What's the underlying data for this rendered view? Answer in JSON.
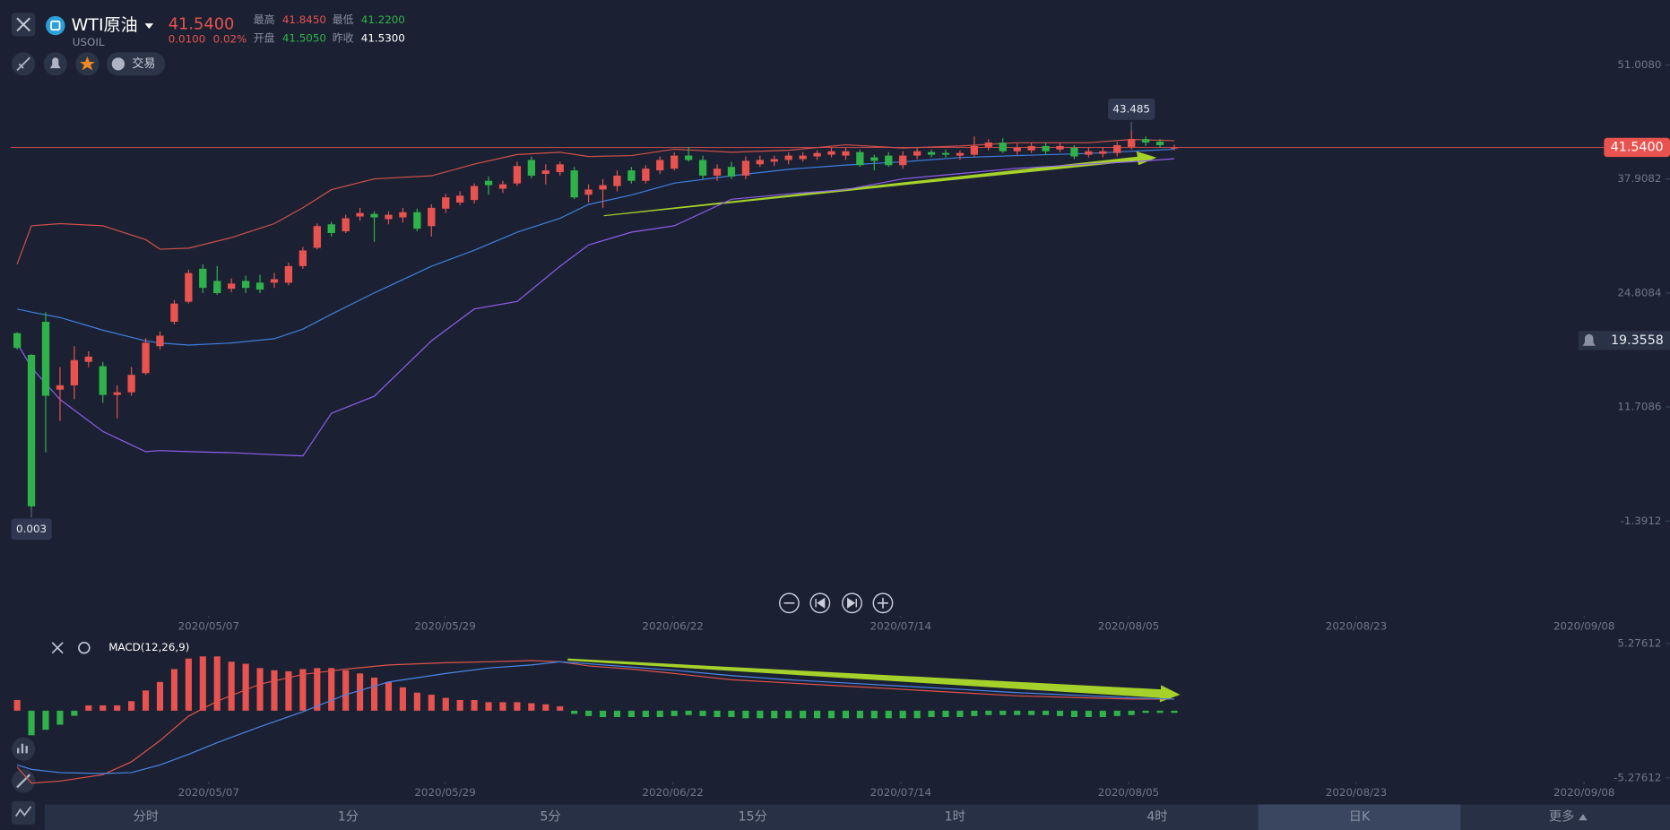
{
  "header": {
    "name": "WTI原油",
    "symbol": "USOIL",
    "price": "41.5400",
    "change": "0.0100",
    "change_pct": "0.02%",
    "stats": [
      {
        "label": "最高",
        "value": "41.8450",
        "color": "#e8524f"
      },
      {
        "label": "开盘",
        "value": "41.5050",
        "color": "#2fb24a"
      },
      {
        "label": "最低",
        "value": "41.2200",
        "color": "#2fb24a"
      },
      {
        "label": "昨收",
        "value": "41.5300",
        "color": "#ffffff"
      }
    ]
  },
  "toolbar": {
    "trade": "交易"
  },
  "price_chart": {
    "type": "candlestick",
    "up_color": "#e8524f",
    "down_color": "#2fb24a",
    "xlim": [
      -1.2,
      115.7
    ],
    "ylim": [
      -11.92,
      58.48
    ],
    "yticks": [
      {
        "value": 51.008,
        "label": "51.0080"
      },
      37.9082,
      24.8084,
      11.7086,
      -1.3912
    ],
    "xticks": [
      {
        "value": 13.41,
        "label": "2020/05/07"
      },
      {
        "value": 29.96,
        "label": "2020/05/29"
      },
      {
        "value": 45.9,
        "label": "2020/06/22"
      },
      {
        "value": 61.85,
        "label": "2020/07/14"
      },
      {
        "value": 77.8,
        "label": "2020/08/05"
      },
      {
        "value": 93.74,
        "label": "2020/08/23"
      },
      {
        "value": 109.69,
        "label": "2020/09/08"
      }
    ],
    "current": {
      "value": 41.54,
      "label": "41.5400",
      "color": "#e8524f"
    },
    "alert": 19.3558,
    "max_index": 78,
    "min_index": 1,
    "candles": [
      [
        20.2,
        20.3,
        18.3,
        18.5
      ],
      [
        17.7,
        17.8,
        0.003,
        0.3
      ],
      [
        21.5,
        22.6,
        6.5,
        13.0
      ],
      [
        13.7,
        16.3,
        10.1,
        14.2
      ],
      [
        14.2,
        18.7,
        12.6,
        17.1
      ],
      [
        16.9,
        18.1,
        16.3,
        17.5
      ],
      [
        16.4,
        16.9,
        12.2,
        13.1
      ],
      [
        13.1,
        14.2,
        10.4,
        13.4
      ],
      [
        13.4,
        16.3,
        13.0,
        15.4
      ],
      [
        15.6,
        19.6,
        15.4,
        19.1
      ],
      [
        18.7,
        20.4,
        18.3,
        19.9
      ],
      [
        21.5,
        24.0,
        21.2,
        23.6
      ],
      [
        23.8,
        27.5,
        23.6,
        27.1
      ],
      [
        27.6,
        28.1,
        24.8,
        25.4
      ],
      [
        26.2,
        27.9,
        24.6,
        24.8
      ],
      [
        25.3,
        26.5,
        24.9,
        25.9
      ],
      [
        26.2,
        26.8,
        24.8,
        25.4
      ],
      [
        26.0,
        26.9,
        24.8,
        25.2
      ],
      [
        26.0,
        27.1,
        25.4,
        26.4
      ],
      [
        26.0,
        28.3,
        25.7,
        27.9
      ],
      [
        27.9,
        30.1,
        27.6,
        29.7
      ],
      [
        30.0,
        32.8,
        29.8,
        32.5
      ],
      [
        32.7,
        33.0,
        31.3,
        31.7
      ],
      [
        31.9,
        33.8,
        31.7,
        33.4
      ],
      [
        33.6,
        34.6,
        33.1,
        34.0
      ],
      [
        33.9,
        34.2,
        30.7,
        33.5
      ],
      [
        33.3,
        34.2,
        32.7,
        33.8
      ],
      [
        33.5,
        34.6,
        32.9,
        34.1
      ],
      [
        34.1,
        34.5,
        31.9,
        32.2
      ],
      [
        32.5,
        35.0,
        31.3,
        34.6
      ],
      [
        34.5,
        36.2,
        34.0,
        35.8
      ],
      [
        35.2,
        36.5,
        34.9,
        36.0
      ],
      [
        35.5,
        37.4,
        35.1,
        37.1
      ],
      [
        37.7,
        38.2,
        36.1,
        37.2
      ],
      [
        36.8,
        37.7,
        36.3,
        37.3
      ],
      [
        37.4,
        39.9,
        37.1,
        39.4
      ],
      [
        40.1,
        40.5,
        38.0,
        38.3
      ],
      [
        38.5,
        39.6,
        37.3,
        38.9
      ],
      [
        38.7,
        39.9,
        38.3,
        39.6
      ],
      [
        38.9,
        39.3,
        35.6,
        35.8
      ],
      [
        36.1,
        37.3,
        35.2,
        36.7
      ],
      [
        36.7,
        37.9,
        34.6,
        37.2
      ],
      [
        37.1,
        38.9,
        36.5,
        38.3
      ],
      [
        38.9,
        39.3,
        37.4,
        37.7
      ],
      [
        37.7,
        39.5,
        37.4,
        39.1
      ],
      [
        38.9,
        40.5,
        38.5,
        40.1
      ],
      [
        39.1,
        41.0,
        38.9,
        40.6
      ],
      [
        40.6,
        41.6,
        39.9,
        40.1
      ],
      [
        40.1,
        40.6,
        37.9,
        38.3
      ],
      [
        38.3,
        39.6,
        37.7,
        39.1
      ],
      [
        39.3,
        39.9,
        37.9,
        38.2
      ],
      [
        38.3,
        40.5,
        37.9,
        40.0
      ],
      [
        39.6,
        40.6,
        39.3,
        40.1
      ],
      [
        39.9,
        40.6,
        39.4,
        40.2
      ],
      [
        40.1,
        41.0,
        39.6,
        40.6
      ],
      [
        40.2,
        41.0,
        39.9,
        40.6
      ],
      [
        40.5,
        41.2,
        40.1,
        40.9
      ],
      [
        40.7,
        41.5,
        40.4,
        41.1
      ],
      [
        40.6,
        41.5,
        40.1,
        41.1
      ],
      [
        41.0,
        41.3,
        39.3,
        39.5
      ],
      [
        40.4,
        40.7,
        38.9,
        40.0
      ],
      [
        40.6,
        41.0,
        39.3,
        39.5
      ],
      [
        39.5,
        41.1,
        39.1,
        40.6
      ],
      [
        40.6,
        41.5,
        40.2,
        41.1
      ],
      [
        41.0,
        41.3,
        40.4,
        40.7
      ],
      [
        40.9,
        41.3,
        40.4,
        40.7
      ],
      [
        40.6,
        41.2,
        40.1,
        40.9
      ],
      [
        40.7,
        42.8,
        40.5,
        41.7
      ],
      [
        41.6,
        42.5,
        41.2,
        42.1
      ],
      [
        42.1,
        42.6,
        40.9,
        41.1
      ],
      [
        41.1,
        42.0,
        40.7,
        41.5
      ],
      [
        41.2,
        42.1,
        40.9,
        41.7
      ],
      [
        41.7,
        42.1,
        40.7,
        41.1
      ],
      [
        41.3,
        42.1,
        41.0,
        41.7
      ],
      [
        41.5,
        41.8,
        40.2,
        40.5
      ],
      [
        40.7,
        41.5,
        40.4,
        41.1
      ],
      [
        40.8,
        41.5,
        40.4,
        41.1
      ],
      [
        40.9,
        42.2,
        40.5,
        41.8
      ],
      [
        41.6,
        43.485,
        41.3,
        42.5
      ],
      [
        42.5,
        42.8,
        41.7,
        42.1
      ],
      [
        42.2,
        42.5,
        41.5,
        41.8
      ],
      [
        41.505,
        41.845,
        41.22,
        41.54
      ]
    ],
    "indicators": {
      "x": [
        0,
        1,
        3,
        6,
        9,
        10,
        12,
        15,
        18,
        20,
        22,
        25,
        29,
        32,
        35,
        38,
        40,
        43,
        46,
        50,
        54,
        58,
        62,
        66,
        70,
        75,
        78,
        81
      ],
      "series": [
        {
          "color": "#d0504a",
          "values": [
            28.13,
            32.53,
            32.78,
            32.53,
            30.94,
            29.84,
            29.96,
            31.18,
            32.78,
            34.61,
            36.69,
            37.92,
            38.28,
            39.63,
            40.73,
            40.98,
            40.49,
            40.61,
            41.34,
            40.98,
            41.22,
            41.84,
            41.47,
            41.71,
            42.08,
            42.08,
            42.45,
            42.32
          ]
        },
        {
          "color": "#3f7fe0",
          "values": [
            22.98,
            22.62,
            22.0,
            20.54,
            19.31,
            19.07,
            18.82,
            19.07,
            19.56,
            20.66,
            22.37,
            24.82,
            27.88,
            29.72,
            31.8,
            33.39,
            34.98,
            36.08,
            37.43,
            38.28,
            39.02,
            39.51,
            39.88,
            40.37,
            40.61,
            40.85,
            41.1,
            41.34
          ]
        },
        {
          "color": "#8f5ef0",
          "values": [
            19.07,
            16.25,
            12.58,
            8.9,
            6.58,
            6.7,
            6.58,
            6.46,
            6.22,
            6.09,
            10.99,
            12.95,
            19.31,
            22.98,
            23.84,
            27.88,
            30.33,
            31.8,
            32.53,
            35.59,
            36.2,
            36.69,
            37.92,
            38.53,
            39.14,
            39.63,
            39.88,
            40.24
          ]
        }
      ]
    }
  },
  "macd_chart": {
    "type": "macd",
    "title": "MACD(12,26,9)",
    "ylim": [
      -6.53,
      5.95
    ],
    "yticks": [
      5.27612,
      -5.27612
    ],
    "histogram": [
      0.84,
      -1.93,
      -1.5,
      -1.1,
      -0.4,
      0.42,
      0.42,
      0.42,
      0.75,
      1.59,
      2.26,
      3.27,
      4.1,
      4.27,
      4.27,
      3.85,
      3.69,
      3.35,
      3.18,
      3.1,
      3.27,
      3.35,
      3.35,
      3.18,
      2.93,
      2.6,
      2.26,
      1.84,
      1.42,
      1.26,
      1.01,
      0.84,
      0.84,
      0.67,
      0.67,
      0.67,
      0.59,
      0.5,
      0.34,
      -0.25,
      -0.42,
      -0.5,
      -0.5,
      -0.5,
      -0.5,
      -0.5,
      -0.42,
      -0.34,
      -0.42,
      -0.5,
      -0.5,
      -0.59,
      -0.59,
      -0.59,
      -0.59,
      -0.59,
      -0.59,
      -0.59,
      -0.59,
      -0.59,
      -0.59,
      -0.59,
      -0.59,
      -0.59,
      -0.5,
      -0.5,
      -0.5,
      -0.42,
      -0.34,
      -0.34,
      -0.34,
      -0.34,
      -0.34,
      -0.42,
      -0.5,
      -0.5,
      -0.5,
      -0.42,
      -0.34,
      -0.17,
      -0.17,
      -0.17
    ],
    "lines": {
      "x": [
        0,
        1,
        3,
        6,
        8,
        10,
        12,
        14,
        17,
        20,
        23,
        26,
        30,
        33,
        36,
        38,
        40,
        43,
        46,
        50,
        54,
        58,
        62,
        66,
        70,
        75,
        78,
        81
      ],
      "series": [
        {
          "color": "#e0534a",
          "values": [
            -4.44,
            -5.69,
            -5.53,
            -5.03,
            -4.02,
            -2.35,
            -0.42,
            0.75,
            2.09,
            2.85,
            3.27,
            3.6,
            3.77,
            3.85,
            3.94,
            3.85,
            3.52,
            3.27,
            2.93,
            2.43,
            2.18,
            1.93,
            1.68,
            1.42,
            1.17,
            1.01,
            0.92,
            0.92
          ]
        },
        {
          "color": "#4a86e8",
          "values": [
            -4.27,
            -4.61,
            -4.86,
            -4.94,
            -4.86,
            -4.27,
            -3.43,
            -2.51,
            -1.26,
            -0.08,
            1.26,
            2.26,
            2.93,
            3.35,
            3.6,
            3.85,
            3.69,
            3.43,
            3.18,
            2.76,
            2.43,
            2.18,
            1.93,
            1.68,
            1.42,
            1.17,
            1.01,
            0.92
          ]
        }
      ]
    }
  },
  "timeframes": {
    "items": [
      "分时",
      "1分",
      "5分",
      "15分",
      "1时",
      "4时",
      "日K",
      "更多"
    ],
    "selected": 6
  }
}
